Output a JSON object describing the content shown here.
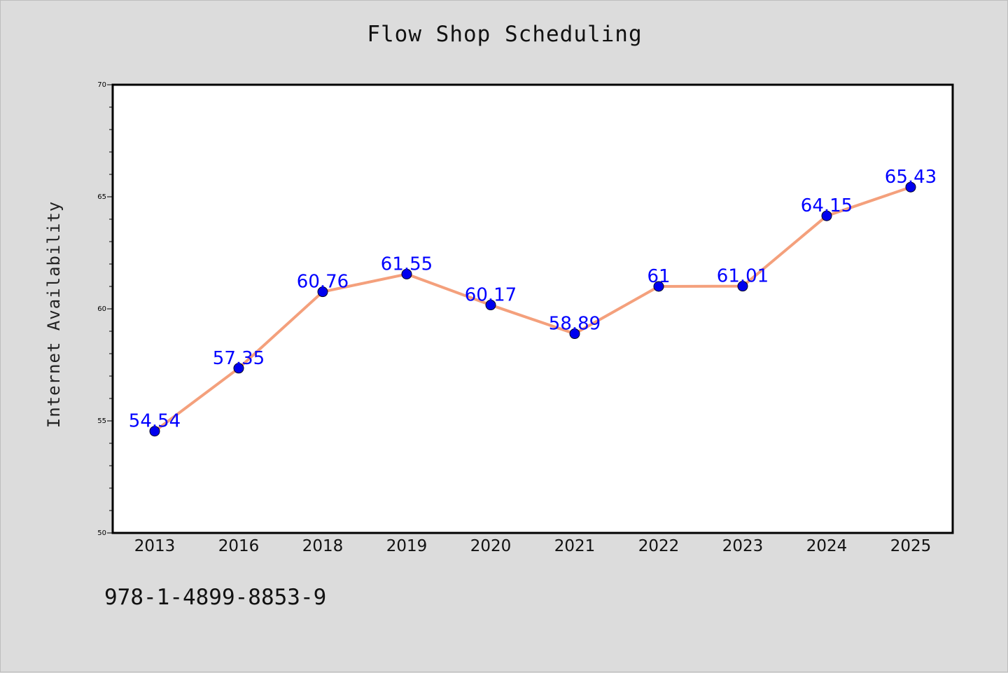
{
  "chart_data": {
    "type": "line",
    "title": "Flow Shop Scheduling",
    "xlabel": "",
    "ylabel": "Internet Availability",
    "categories": [
      "2013",
      "2016",
      "2018",
      "2019",
      "2020",
      "2021",
      "2022",
      "2023",
      "2024",
      "2025"
    ],
    "series": [
      {
        "values": [
          54.54,
          57.35,
          60.76,
          61.55,
          60.17,
          58.89,
          61,
          61.01,
          64.15,
          65.43
        ],
        "data_labels": [
          "54.54",
          "57.35",
          "60.76",
          "61.55",
          "60.17",
          "58.89",
          "61",
          "61.01",
          "64.15",
          "65.43"
        ]
      }
    ],
    "ylim": [
      50,
      70
    ],
    "yticks": [
      50,
      55,
      60,
      65,
      70
    ],
    "grid": false,
    "legend": "none",
    "colors": {
      "line": "#f4a07c",
      "marker": "#0000ee",
      "data_label": "#0000ff",
      "plot_background": "#ffffff",
      "page_background": "#dcdcdc"
    }
  },
  "footer": {
    "isbn": "978-1-4899-8853-9"
  }
}
